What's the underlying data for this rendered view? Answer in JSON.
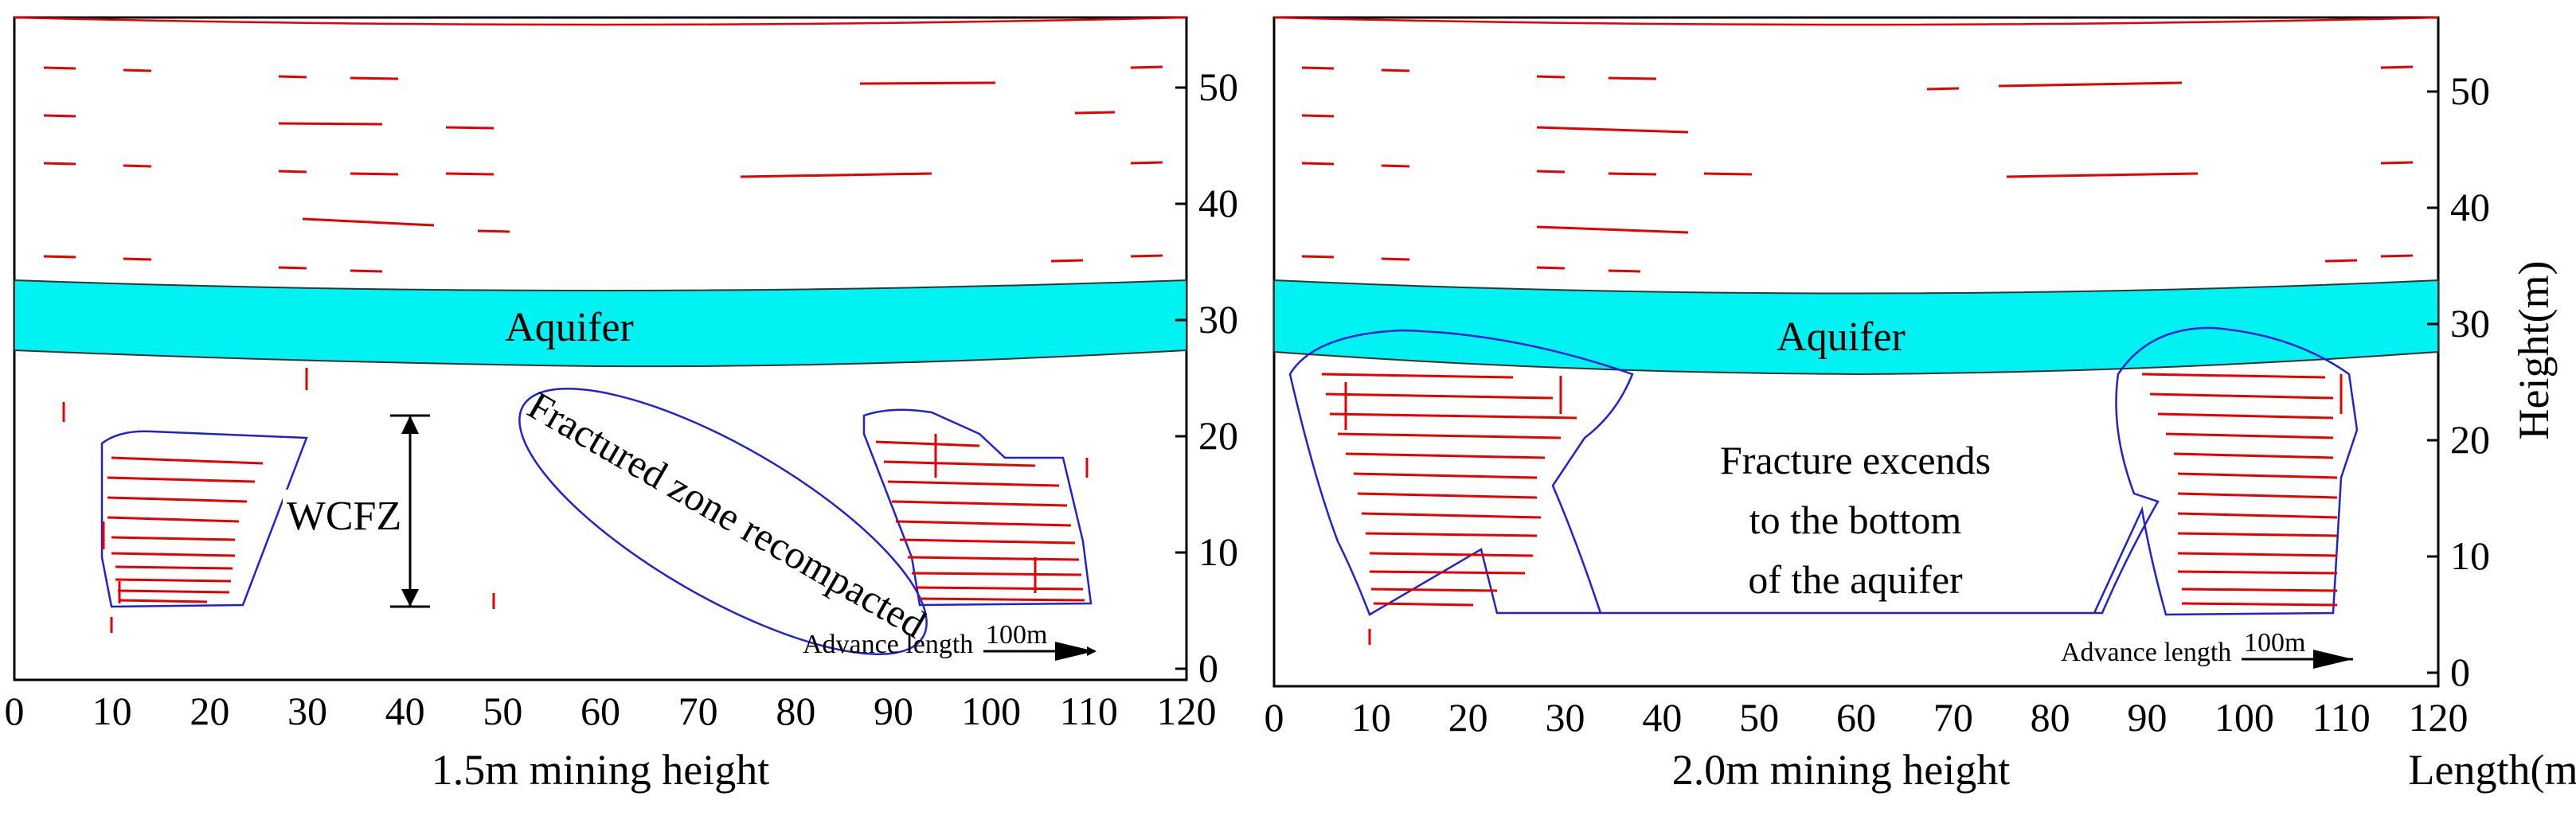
{
  "colors": {
    "aquifer": "#00f2f2",
    "crack": "#e60000",
    "zone": "#2222cc",
    "axis": "#000000"
  },
  "axes": {
    "x_ticks": [
      "0",
      "10",
      "20",
      "30",
      "40",
      "50",
      "60",
      "70",
      "80",
      "90",
      "100",
      "110",
      "120"
    ],
    "y_ticks": [
      "0",
      "10",
      "20",
      "30",
      "40",
      "50"
    ],
    "y_label": "Height(m)",
    "x_label": "Length(m)"
  },
  "panels": [
    {
      "caption": "1.5m mining height",
      "aquifer_label": "Aquifer",
      "wcfz_label": "WCFZ",
      "recompacted_label": "Fractured zone recompacted",
      "advance_label": "Advance length",
      "advance_distance": "100m"
    },
    {
      "caption": "2.0m mining height",
      "aquifer_label": "Aquifer",
      "fracture_lines": [
        "Fracture excends",
        "to the bottom",
        "of the aquifer"
      ],
      "advance_label": "Advance length",
      "advance_distance": "100m"
    }
  ]
}
